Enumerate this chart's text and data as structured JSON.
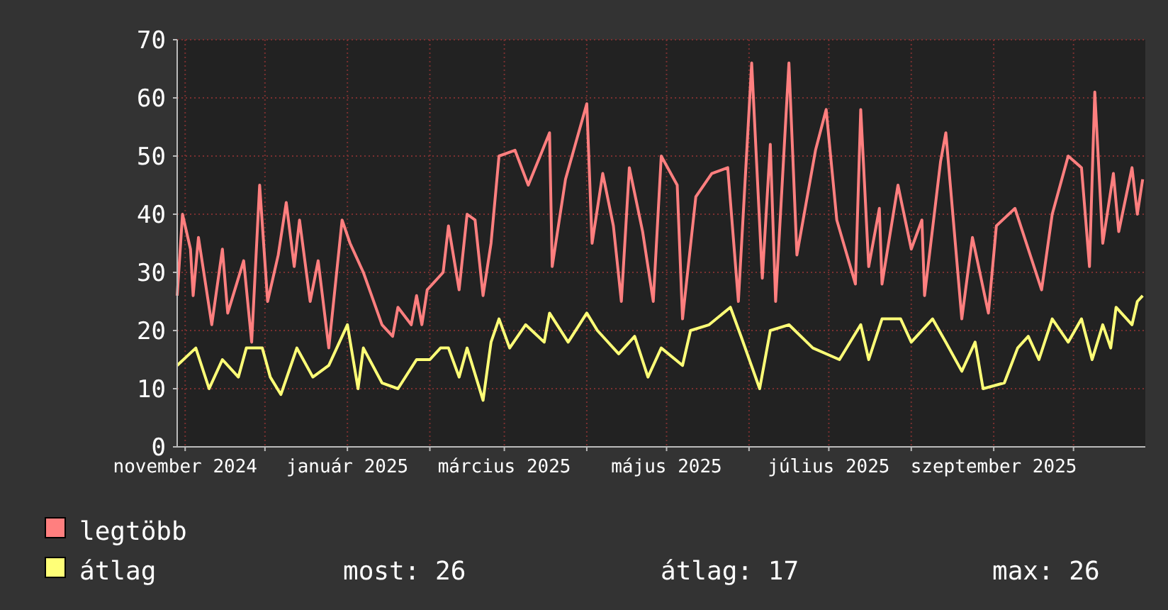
{
  "chart_data": {
    "type": "line",
    "xlim": [
      "2024-10-29",
      "2025-10-28"
    ],
    "xticks": [
      {
        "value": "2024-11-01",
        "label": "november 2024"
      },
      {
        "value": "2024-12-01",
        "label": null
      },
      {
        "value": "2025-01-01",
        "label": "január 2025"
      },
      {
        "value": "2025-02-01",
        "label": null
      },
      {
        "value": "2025-03-01",
        "label": "március 2025"
      },
      {
        "value": "2025-04-01",
        "label": null
      },
      {
        "value": "2025-05-01",
        "label": "május 2025"
      },
      {
        "value": "2025-06-01",
        "label": null
      },
      {
        "value": "2025-07-01",
        "label": "július 2025"
      },
      {
        "value": "2025-08-01",
        "label": null
      },
      {
        "value": "2025-09-01",
        "label": "szeptember 2025"
      },
      {
        "value": "2025-10-01",
        "label": null
      }
    ],
    "ylim": [
      0,
      70
    ],
    "yticks": [
      0,
      10,
      20,
      30,
      40,
      50,
      60,
      70
    ],
    "grid": true,
    "legend": "bottom",
    "marker": "none",
    "line_style": "solid",
    "annotations": [
      "most: 26",
      "átlag: 17",
      "max: 26"
    ],
    "series": [
      {
        "name": "legtöbb",
        "color": "#ff7f7f",
        "x": [
          "2024-10-29",
          "2024-10-31",
          "2024-11-03",
          "2024-11-04",
          "2024-11-06",
          "2024-11-11",
          "2024-11-15",
          "2024-11-17",
          "2024-11-23",
          "2024-11-26",
          "2024-11-29",
          "2024-12-02",
          "2024-12-06",
          "2024-12-09",
          "2024-12-12",
          "2024-12-14",
          "2024-12-18",
          "2024-12-21",
          "2024-12-25",
          "2024-12-30",
          "2025-01-02",
          "2025-01-07",
          "2025-01-14",
          "2025-01-18",
          "2025-01-20",
          "2025-01-25",
          "2025-01-27",
          "2025-01-29",
          "2025-01-31",
          "2025-02-06",
          "2025-02-08",
          "2025-02-12",
          "2025-02-15",
          "2025-02-18",
          "2025-02-21",
          "2025-02-24",
          "2025-02-27",
          "2025-03-05",
          "2025-03-10",
          "2025-03-18",
          "2025-03-19",
          "2025-03-24",
          "2025-04-01",
          "2025-04-03",
          "2025-04-07",
          "2025-04-11",
          "2025-04-14",
          "2025-04-17",
          "2025-04-22",
          "2025-04-26",
          "2025-04-29",
          "2025-05-05",
          "2025-05-07",
          "2025-05-12",
          "2025-05-18",
          "2025-05-24",
          "2025-05-28",
          "2025-06-02",
          "2025-06-06",
          "2025-06-09",
          "2025-06-11",
          "2025-06-16",
          "2025-06-19",
          "2025-06-26",
          "2025-06-30",
          "2025-07-04",
          "2025-07-11",
          "2025-07-13",
          "2025-07-16",
          "2025-07-20",
          "2025-07-21",
          "2025-07-27",
          "2025-08-01",
          "2025-08-05",
          "2025-08-06",
          "2025-08-12",
          "2025-08-14",
          "2025-08-20",
          "2025-08-24",
          "2025-08-30",
          "2025-09-02",
          "2025-09-09",
          "2025-09-19",
          "2025-09-23",
          "2025-09-29",
          "2025-10-04",
          "2025-10-07",
          "2025-10-09",
          "2025-10-12",
          "2025-10-16",
          "2025-10-18",
          "2025-10-23",
          "2025-10-25",
          "2025-10-27"
        ],
        "values": [
          26,
          40,
          34,
          26,
          36,
          21,
          34,
          23,
          32,
          18,
          45,
          25,
          33,
          42,
          31,
          39,
          25,
          32,
          17,
          39,
          35,
          30,
          21,
          19,
          24,
          21,
          26,
          21,
          27,
          30,
          38,
          27,
          40,
          39,
          26,
          35,
          50,
          51,
          45,
          54,
          31,
          46,
          59,
          35,
          47,
          38,
          25,
          48,
          37,
          25,
          50,
          45,
          22,
          43,
          47,
          48,
          25,
          66,
          29,
          52,
          25,
          66,
          33,
          51,
          58,
          39,
          28,
          58,
          31,
          41,
          28,
          45,
          34,
          39,
          26,
          49,
          54,
          22,
          36,
          23,
          38,
          41,
          27,
          40,
          50,
          48,
          31,
          61,
          35,
          47,
          37,
          48,
          40,
          46
        ]
      },
      {
        "name": "átlag",
        "color": "#ffff77",
        "x": [
          "2024-10-29",
          "2024-11-05",
          "2024-11-10",
          "2024-11-15",
          "2024-11-21",
          "2024-11-24",
          "2024-11-30",
          "2024-12-03",
          "2024-12-07",
          "2024-12-13",
          "2024-12-19",
          "2024-12-25",
          "2024-12-28",
          "2025-01-01",
          "2025-01-05",
          "2025-01-07",
          "2025-01-14",
          "2025-01-20",
          "2025-01-27",
          "2025-02-01",
          "2025-02-05",
          "2025-02-08",
          "2025-02-12",
          "2025-02-15",
          "2025-02-21",
          "2025-02-24",
          "2025-02-27",
          "2025-03-03",
          "2025-03-09",
          "2025-03-16",
          "2025-03-18",
          "2025-03-25",
          "2025-04-01",
          "2025-04-05",
          "2025-04-13",
          "2025-04-19",
          "2025-04-24",
          "2025-04-29",
          "2025-05-07",
          "2025-05-10",
          "2025-05-17",
          "2025-05-25",
          "2025-05-29",
          "2025-06-05",
          "2025-06-09",
          "2025-06-16",
          "2025-06-25",
          "2025-07-05",
          "2025-07-13",
          "2025-07-16",
          "2025-07-21",
          "2025-07-28",
          "2025-08-01",
          "2025-08-09",
          "2025-08-14",
          "2025-08-20",
          "2025-08-25",
          "2025-08-28",
          "2025-09-05",
          "2025-09-10",
          "2025-09-14",
          "2025-09-18",
          "2025-09-23",
          "2025-09-29",
          "2025-10-04",
          "2025-10-08",
          "2025-10-12",
          "2025-10-15",
          "2025-10-17",
          "2025-10-23",
          "2025-10-25",
          "2025-10-27"
        ],
        "values": [
          14,
          17,
          10,
          15,
          12,
          17,
          17,
          12,
          9,
          17,
          12,
          14,
          17,
          21,
          10,
          17,
          11,
          10,
          15,
          15,
          17,
          17,
          12,
          17,
          8,
          18,
          22,
          17,
          21,
          18,
          23,
          18,
          23,
          20,
          16,
          19,
          12,
          17,
          14,
          20,
          21,
          24,
          19,
          10,
          20,
          21,
          17,
          15,
          21,
          15,
          22,
          22,
          18,
          22,
          18,
          13,
          18,
          10,
          11,
          17,
          19,
          15,
          22,
          18,
          22,
          15,
          21,
          17,
          24,
          21,
          25,
          26
        ]
      }
    ]
  }
}
